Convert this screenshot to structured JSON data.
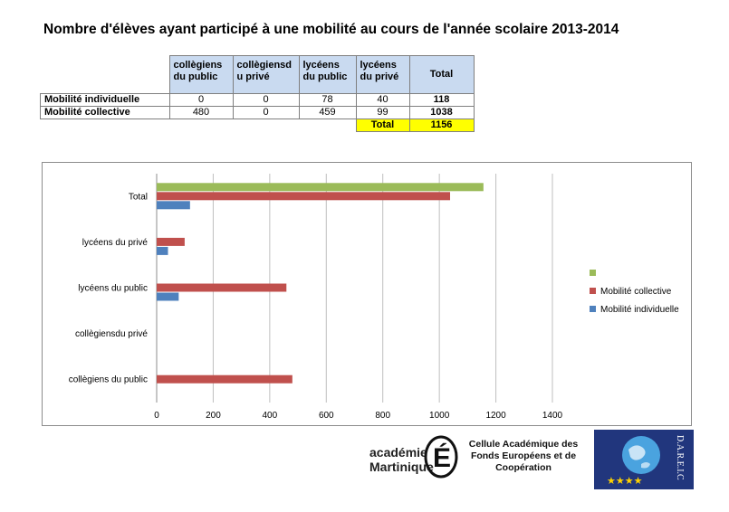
{
  "title": "Nombre d'élèves ayant participé à une mobilité au cours de l'année scolaire 2013-2014",
  "table": {
    "headers": [
      "collègiens du public",
      "collègiensd u privé",
      "lycéens du public",
      "lycéens du privé",
      "Total"
    ],
    "rows": [
      {
        "label": "Mobilité individuelle",
        "values": [
          "0",
          "0",
          "78",
          "40"
        ],
        "total": "118"
      },
      {
        "label": "Mobilité collective",
        "values": [
          "480",
          "0",
          "459",
          "99"
        ],
        "total": "1038"
      }
    ],
    "grand_total_label": "Total",
    "grand_total_value": "1156"
  },
  "chart_data": {
    "type": "bar",
    "orientation": "horizontal",
    "categories": [
      "collègiens du public",
      "collègiensdu privé",
      "lycéens du public",
      "lycéens du privé",
      "Total"
    ],
    "series": [
      {
        "name": "Mobilité individuelle",
        "color": "#4f81bd",
        "values": [
          0,
          0,
          78,
          40,
          118
        ]
      },
      {
        "name": "Mobilité collective",
        "color": "#c0504d",
        "values": [
          480,
          0,
          459,
          99,
          1038
        ]
      },
      {
        "name": "",
        "color": "#9bbb59",
        "values": [
          0,
          0,
          0,
          0,
          1156
        ]
      }
    ],
    "xlim": [
      0,
      1400
    ],
    "xticks": [
      "0",
      "200",
      "400",
      "600",
      "800",
      "1000",
      "1200",
      "1400"
    ],
    "grid": true,
    "legend_position": "right"
  },
  "logos": {
    "academie_line1": "académie",
    "academie_line2": "Martinique",
    "cell_text": "Cellule Académique des Fonds Européens et de Coopération",
    "dareic_text": "D.A.R.E.I.C"
  }
}
